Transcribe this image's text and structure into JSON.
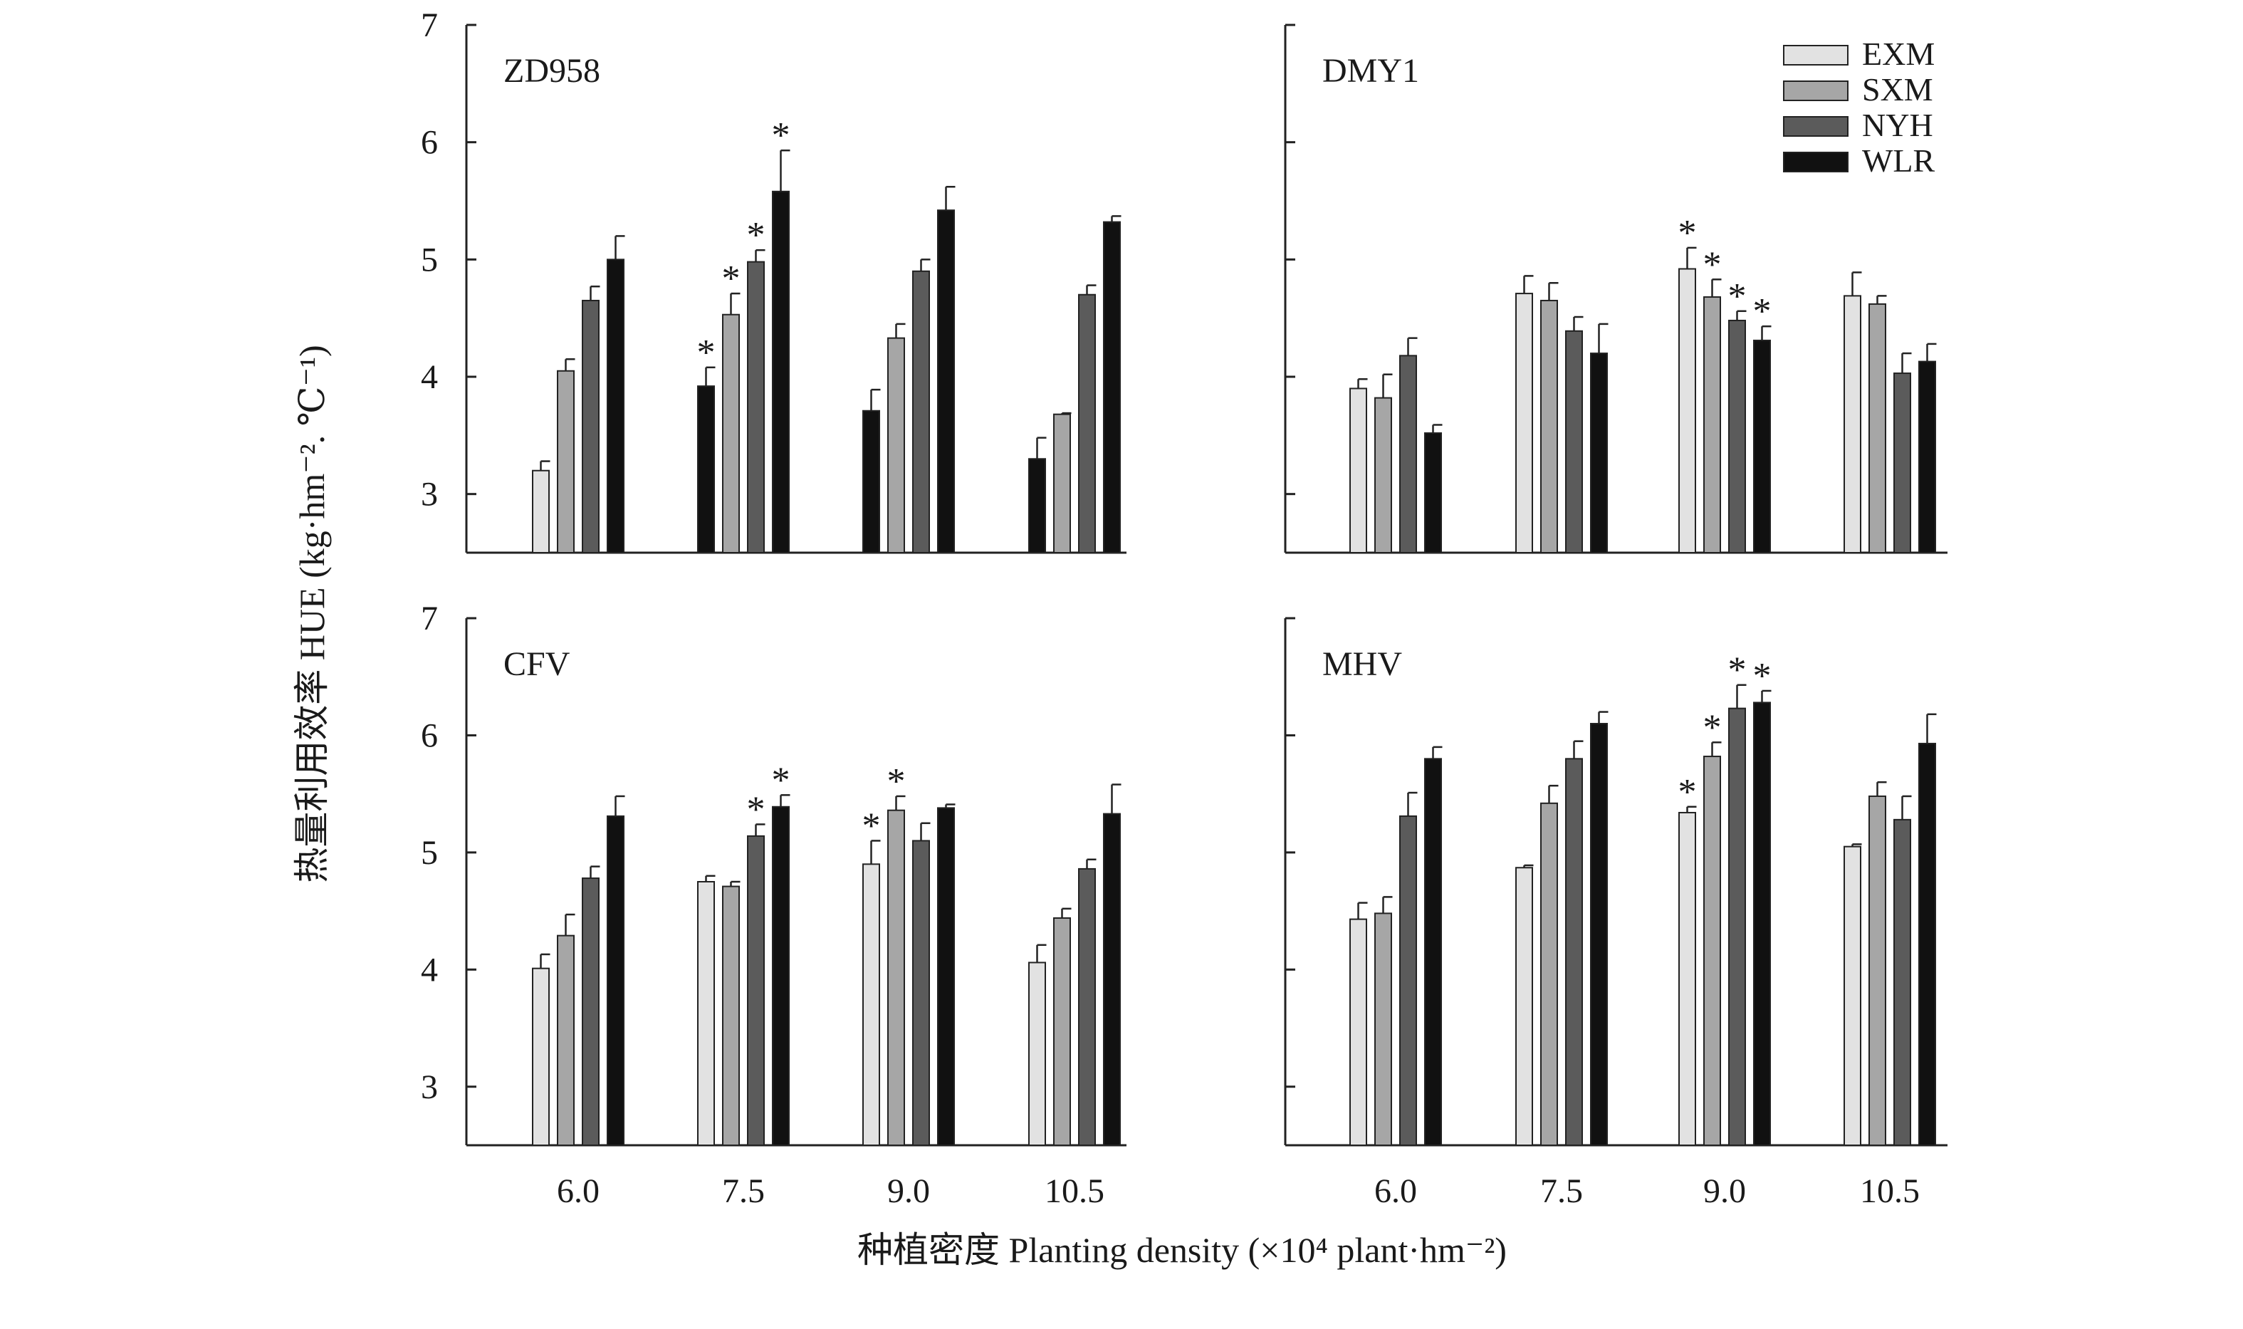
{
  "figure": {
    "ylabel": "热量利用效率 HUE (kg·hm⁻². ℃⁻¹)",
    "xlabel": "种植密度 Planting density (×10⁴ plant·hm⁻²)"
  },
  "legend": {
    "position": "top-right",
    "items": [
      {
        "name": "EXM",
        "color": "#e2e2e2"
      },
      {
        "name": "SXM",
        "color": "#a6a6a6"
      },
      {
        "name": "NYH",
        "color": "#5b5b5b"
      },
      {
        "name": "WLR",
        "color": "#111111"
      }
    ]
  },
  "chart_data": [
    {
      "type": "bar",
      "title": "ZD958",
      "categories": [
        "6.0",
        "7.5",
        "9.0",
        "10.5"
      ],
      "ylim": [
        2.5,
        7
      ],
      "yticks": [
        "3",
        "4",
        "5",
        "6",
        "7"
      ],
      "series": [
        {
          "name": "EXM",
          "values": [
            3.2,
            null,
            null,
            null
          ],
          "errors": [
            0.08,
            null,
            null,
            null
          ],
          "sig": [
            false,
            false,
            false,
            false
          ]
        },
        {
          "name": "SXM",
          "values": [
            4.05,
            4.53,
            4.33,
            3.68
          ],
          "errors": [
            0.1,
            0.18,
            0.12,
            0.01
          ],
          "sig": [
            false,
            true,
            false,
            false
          ]
        },
        {
          "name": "NYH",
          "values": [
            4.65,
            4.98,
            4.9,
            4.7
          ],
          "errors": [
            0.12,
            0.1,
            0.1,
            0.08
          ],
          "sig": [
            false,
            true,
            false,
            false
          ]
        },
        {
          "name": "WLR",
          "values": [
            5.0,
            5.58,
            5.42,
            5.32
          ],
          "errors": [
            0.2,
            0.35,
            0.2,
            0.05
          ],
          "sig": [
            false,
            true,
            false,
            false
          ]
        }
      ],
      "extra_bars": [
        {
          "category": "7.5",
          "value": 3.92,
          "error": 0.16,
          "sig": true
        },
        {
          "category": "9.0",
          "value": 3.71,
          "error": 0.18,
          "sig": false
        },
        {
          "category": "10.5",
          "value": 3.3,
          "error": 0.18,
          "sig": false
        }
      ]
    },
    {
      "type": "bar",
      "title": "DMY1",
      "categories": [
        "6.0",
        "7.5",
        "9.0",
        "10.5"
      ],
      "ylim": [
        2.5,
        7
      ],
      "yticks": [],
      "series": [
        {
          "name": "EXM",
          "values": [
            3.9,
            4.71,
            4.92,
            4.69
          ],
          "errors": [
            0.08,
            0.15,
            0.18,
            0.2
          ],
          "sig": [
            false,
            false,
            true,
            false
          ]
        },
        {
          "name": "SXM",
          "values": [
            3.82,
            4.65,
            4.68,
            4.62
          ],
          "errors": [
            0.2,
            0.15,
            0.15,
            0.07
          ],
          "sig": [
            false,
            false,
            true,
            false
          ]
        },
        {
          "name": "NYH",
          "values": [
            4.18,
            4.39,
            4.48,
            4.03
          ],
          "errors": [
            0.15,
            0.12,
            0.08,
            0.17
          ],
          "sig": [
            false,
            false,
            true,
            false
          ]
        },
        {
          "name": "WLR",
          "values": [
            3.52,
            4.2,
            4.31,
            4.13
          ],
          "errors": [
            0.07,
            0.25,
            0.12,
            0.15
          ],
          "sig": [
            false,
            false,
            true,
            false
          ]
        }
      ]
    },
    {
      "type": "bar",
      "title": "CFV",
      "categories": [
        "6.0",
        "7.5",
        "9.0",
        "10.5"
      ],
      "ylim": [
        2.5,
        7
      ],
      "yticks": [
        "3",
        "4",
        "5",
        "6",
        "7"
      ],
      "series": [
        {
          "name": "EXM",
          "values": [
            4.01,
            4.75,
            4.9,
            4.06
          ],
          "errors": [
            0.12,
            0.05,
            0.2,
            0.15
          ],
          "sig": [
            false,
            false,
            true,
            false
          ]
        },
        {
          "name": "SXM",
          "values": [
            4.29,
            4.71,
            5.36,
            4.44
          ],
          "errors": [
            0.18,
            0.04,
            0.12,
            0.08
          ],
          "sig": [
            false,
            false,
            true,
            false
          ]
        },
        {
          "name": "NYH",
          "values": [
            4.78,
            5.14,
            5.1,
            4.86
          ],
          "errors": [
            0.1,
            0.1,
            0.15,
            0.08
          ],
          "sig": [
            false,
            true,
            false,
            false
          ]
        },
        {
          "name": "WLR",
          "values": [
            5.31,
            5.39,
            5.38,
            5.33
          ],
          "errors": [
            0.17,
            0.1,
            0.03,
            0.25
          ],
          "sig": [
            false,
            true,
            false,
            false
          ]
        }
      ]
    },
    {
      "type": "bar",
      "title": "MHV",
      "categories": [
        "6.0",
        "7.5",
        "9.0",
        "10.5"
      ],
      "ylim": [
        2.5,
        7
      ],
      "yticks": [],
      "series": [
        {
          "name": "EXM",
          "values": [
            4.43,
            4.87,
            5.34,
            5.05
          ],
          "errors": [
            0.14,
            0.02,
            0.05,
            0.02
          ],
          "sig": [
            false,
            false,
            true,
            false
          ]
        },
        {
          "name": "SXM",
          "values": [
            4.48,
            5.42,
            5.82,
            5.48
          ],
          "errors": [
            0.14,
            0.15,
            0.12,
            0.12
          ],
          "sig": [
            false,
            false,
            true,
            false
          ]
        },
        {
          "name": "NYH",
          "values": [
            5.31,
            5.8,
            6.23,
            5.28
          ],
          "errors": [
            0.2,
            0.15,
            0.2,
            0.2
          ],
          "sig": [
            false,
            false,
            true,
            false
          ]
        },
        {
          "name": "WLR",
          "values": [
            5.8,
            6.1,
            6.28,
            5.93
          ],
          "errors": [
            0.1,
            0.1,
            0.1,
            0.25
          ],
          "sig": [
            false,
            false,
            true,
            false
          ]
        }
      ]
    }
  ]
}
